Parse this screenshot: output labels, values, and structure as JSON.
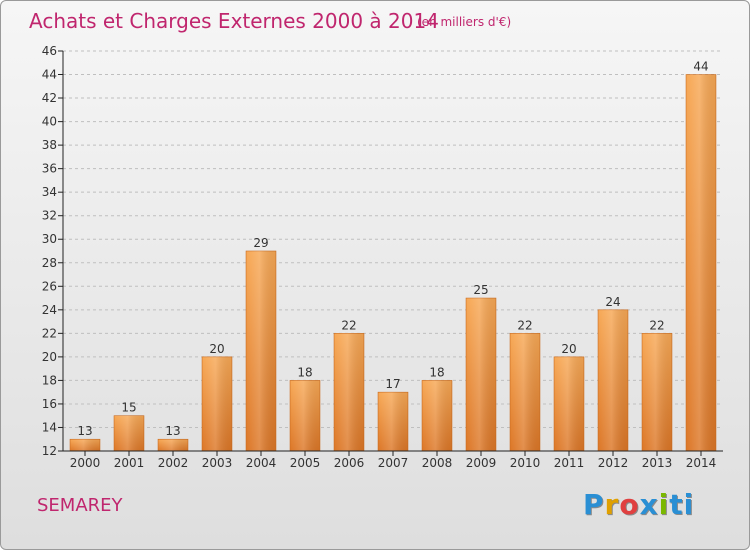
{
  "title": "Achats et Charges Externes 2000 à 2014",
  "subtitle": "(en milliers d'€)",
  "commune": "SEMAREY",
  "logo": {
    "letters": [
      "P",
      "r",
      "o",
      "x",
      "i",
      "ti"
    ]
  },
  "colors": {
    "title": "#c0266e",
    "bar_light": "#f6a552",
    "bar_dark": "#dd7a26",
    "axis": "#222222",
    "grid": "#bfbfbf"
  },
  "chart_data": {
    "type": "bar",
    "title": "Achats et Charges Externes 2000 à 2014",
    "subtitle": "(en milliers d'€)",
    "xlabel": "",
    "ylabel": "",
    "categories": [
      "2000",
      "2001",
      "2002",
      "2003",
      "2004",
      "2005",
      "2006",
      "2007",
      "2008",
      "2009",
      "2010",
      "2011",
      "2012",
      "2013",
      "2014"
    ],
    "values": [
      13,
      15,
      13,
      20,
      29,
      18,
      22,
      17,
      18,
      25,
      22,
      20,
      24,
      22,
      44
    ],
    "ylim": [
      12,
      46
    ],
    "yticks": [
      12,
      14,
      16,
      18,
      20,
      22,
      24,
      26,
      28,
      30,
      32,
      34,
      36,
      38,
      40,
      42,
      44,
      46
    ],
    "grid": "horizontal"
  }
}
